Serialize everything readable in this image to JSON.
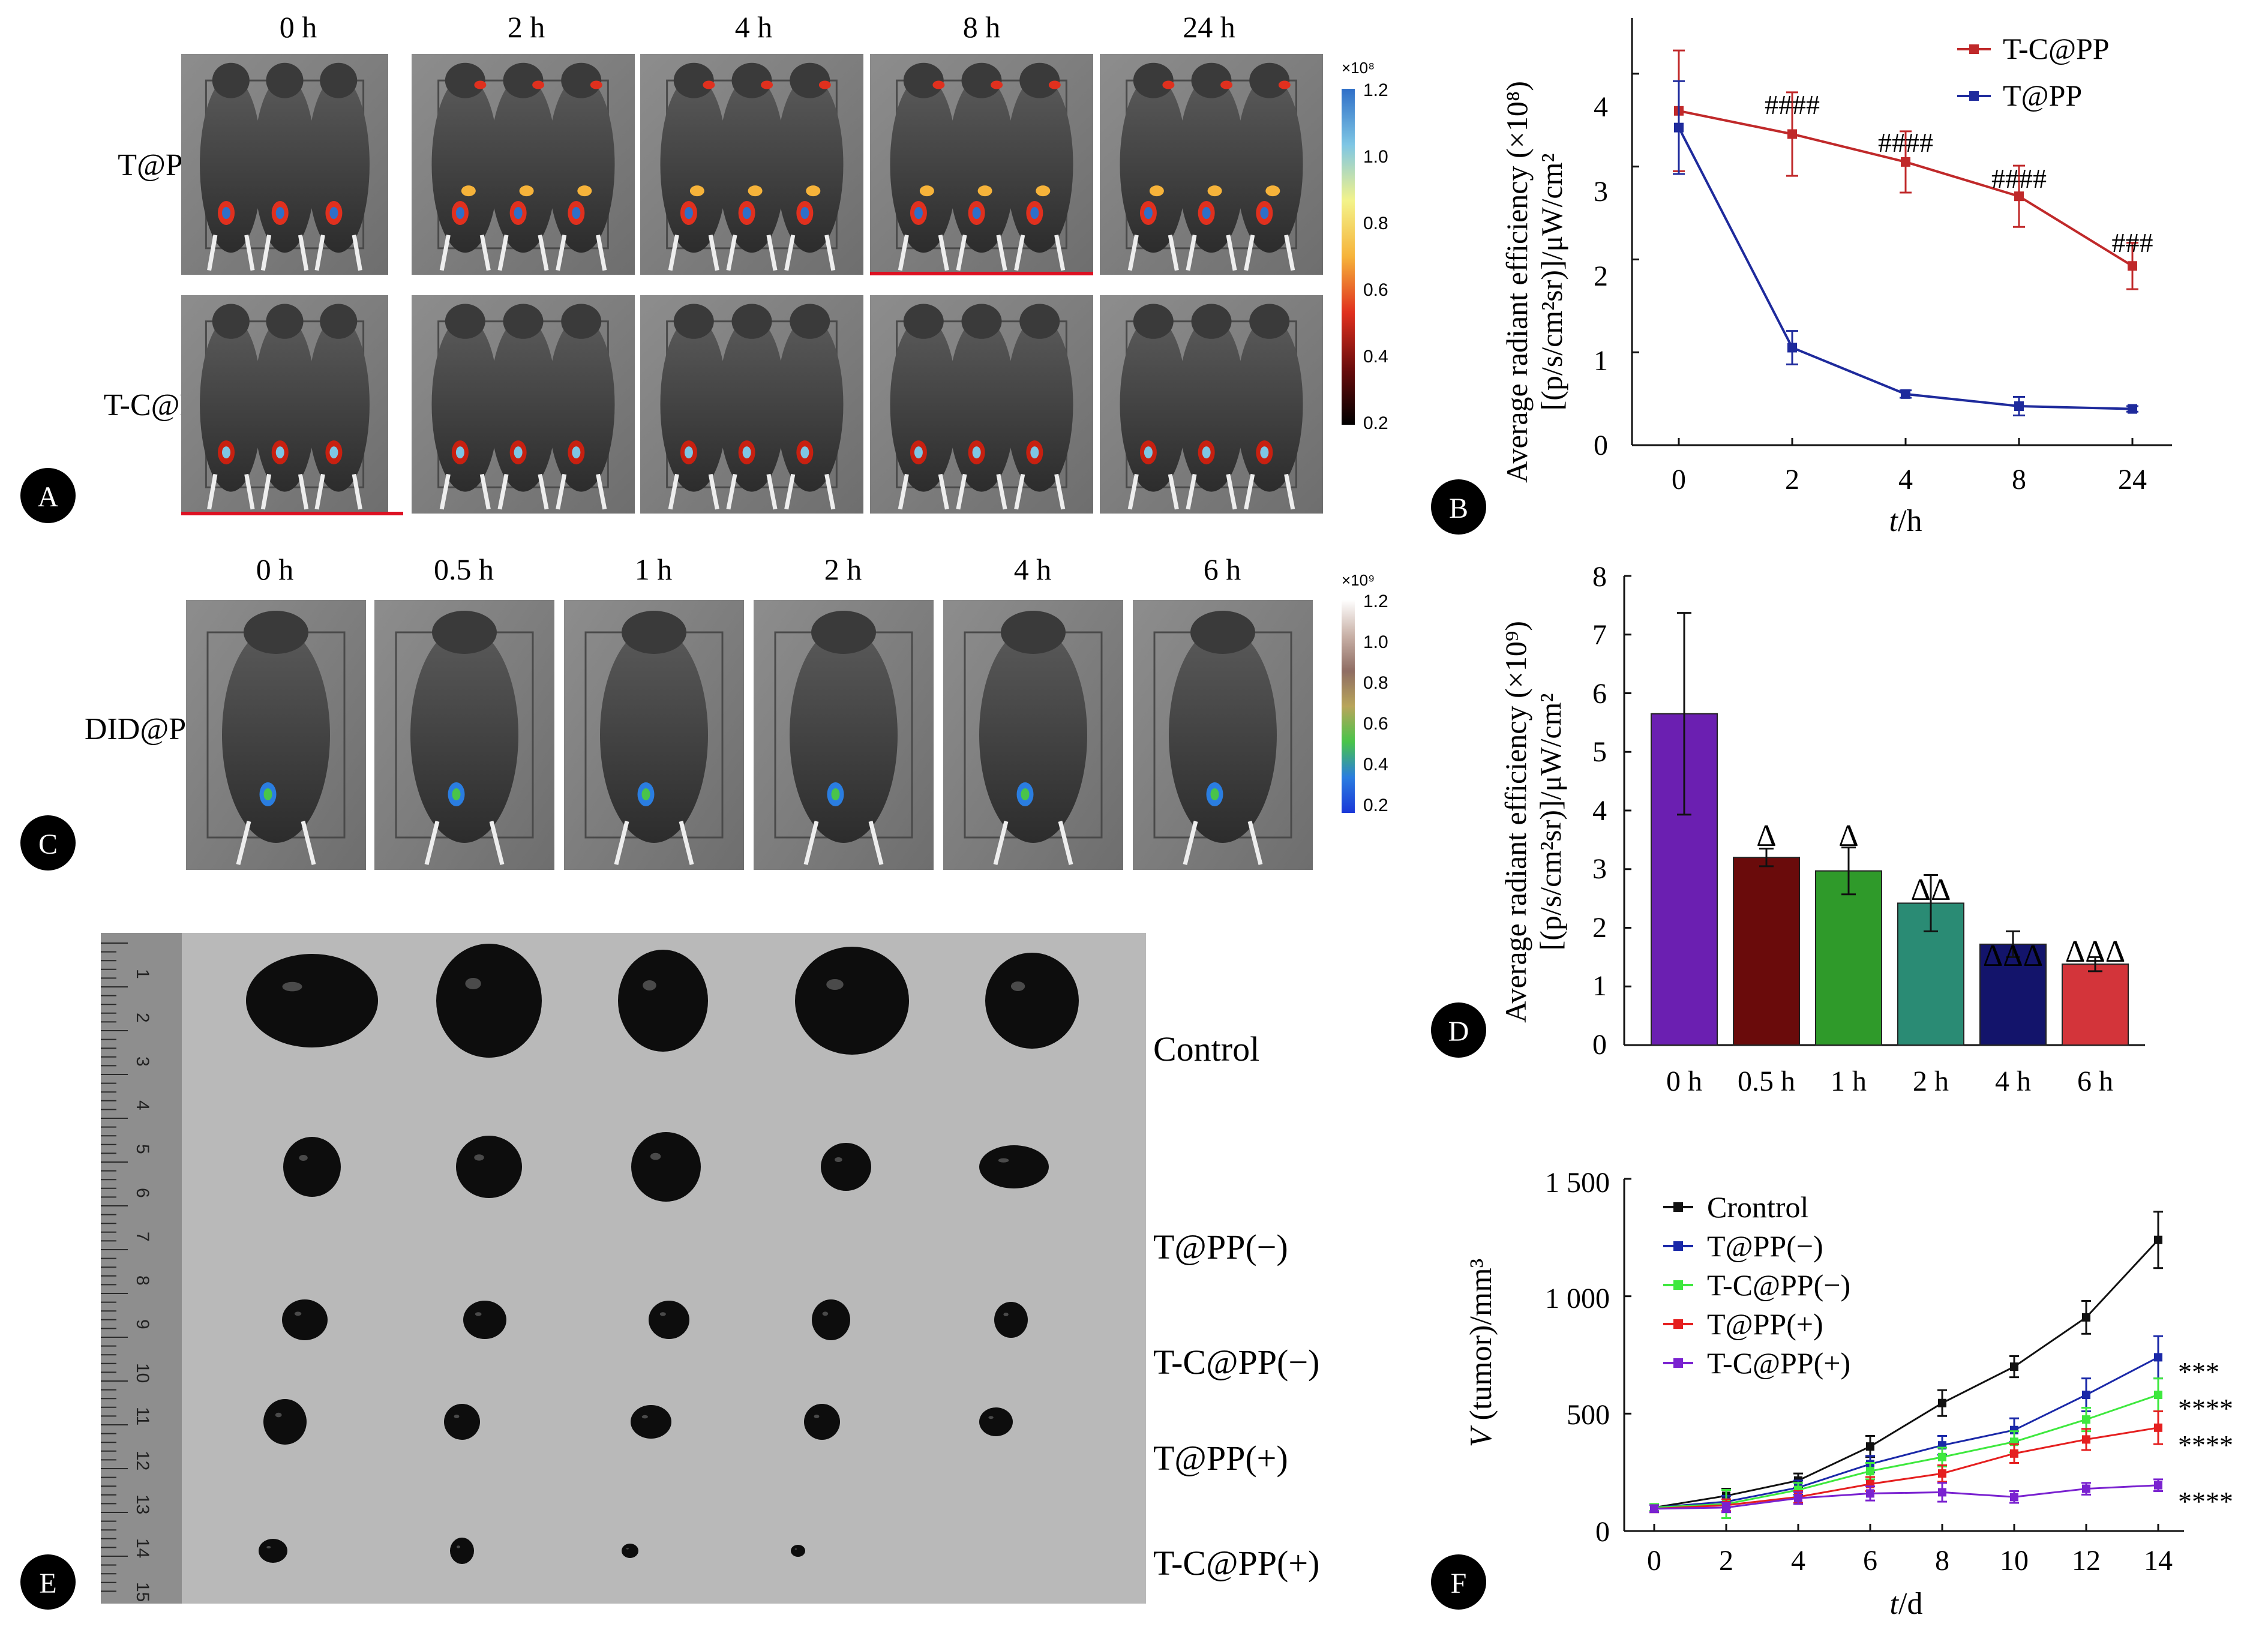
{
  "panel_a": {
    "letter": "A",
    "times": [
      "0 h",
      "2 h",
      "4 h",
      "8 h",
      "24 h"
    ],
    "rows": [
      "T@PP",
      "T-C@PP"
    ],
    "colorbar": {
      "exponent": "×10⁸",
      "ticks": [
        "1.2",
        "1.0",
        "0.8",
        "0.6",
        "0.4",
        "0.2"
      ],
      "colors": [
        "#2f6fc8",
        "#7ec6e4",
        "#f3f38a",
        "#f6b33a",
        "#e0301e",
        "#6b0c0c",
        "#000000"
      ]
    }
  },
  "panel_c": {
    "letter": "C",
    "times": [
      "0 h",
      "0.5 h",
      "1 h",
      "2 h",
      "4 h",
      "6 h"
    ],
    "row": "DID@PP",
    "colorbar": {
      "exponent": "×10⁹",
      "ticks": [
        "1.2",
        "1.0",
        "0.8",
        "0.6",
        "0.4",
        "0.2"
      ],
      "colors": [
        "#ffffff",
        "#c9b2a8",
        "#8f6d63",
        "#b8a55a",
        "#49c44a",
        "#2a7de0",
        "#1a37d8"
      ]
    }
  },
  "panel_e": {
    "letter": "E",
    "groups": [
      "Control",
      "T@PP(−)",
      "T-C@PP(−)",
      "T@PP(+)",
      "T-C@PP(+)"
    ],
    "ruler_marks": [
      "1",
      "2",
      "3",
      "4",
      "5",
      "6",
      "7",
      "8",
      "9",
      "10",
      "11",
      "12",
      "13",
      "14",
      "15"
    ]
  },
  "chart_data": [
    {
      "id": "B",
      "type": "line",
      "letter": "B",
      "xlabel_italic": "t",
      "xlabel_unit": "/h",
      "ylabel_line1": "Average radiant efficiency (×10⁸)",
      "ylabel_line2": "[(p/s/cm²sr)]/μW/cm²",
      "categories": [
        "0",
        "2",
        "4",
        "8",
        "24"
      ],
      "ylim": [
        0,
        4.6
      ],
      "yticks": [
        "0",
        "1",
        "2",
        "3",
        "4"
      ],
      "series": [
        {
          "name": "T-C@PP",
          "color": "#c0292a",
          "values": [
            3.6,
            3.35,
            3.05,
            2.68,
            1.93
          ],
          "errors": [
            0.65,
            0.45,
            0.33,
            0.33,
            0.25
          ]
        },
        {
          "name": "T@PP",
          "color": "#1e2a9c",
          "values": [
            3.42,
            1.05,
            0.55,
            0.42,
            0.39
          ],
          "errors": [
            0.5,
            0.18,
            0.04,
            0.1,
            0.03
          ]
        }
      ],
      "annotations": [
        "####",
        "####",
        "####",
        "###"
      ]
    },
    {
      "id": "D",
      "type": "bar",
      "letter": "D",
      "ylabel_line1": "Average radiant efficiency (×10⁹)",
      "ylabel_line2": "[(p/s/cm²sr)]/μW/cm²",
      "categories": [
        "0 h",
        "0.5 h",
        "1 h",
        "2 h",
        "4 h",
        "6 h"
      ],
      "values": [
        5.65,
        3.2,
        2.97,
        2.42,
        1.72,
        1.38
      ],
      "errors": [
        1.72,
        0.15,
        0.4,
        0.48,
        0.22,
        0.12
      ],
      "colors": [
        "#6b1fb1",
        "#6a0b0b",
        "#2f9a2a",
        "#2a8b74",
        "#13146b",
        "#d3343a"
      ],
      "labels": [
        "",
        "Δ",
        "Δ",
        "ΔΔ",
        "ΔΔΔ",
        "ΔΔΔ"
      ],
      "ylim": [
        0,
        8
      ],
      "yticks": [
        "0",
        "1",
        "2",
        "3",
        "4",
        "5",
        "6",
        "7",
        "8"
      ]
    },
    {
      "id": "F",
      "type": "line",
      "letter": "F",
      "xlabel_italic": "t",
      "xlabel_unit": "/d",
      "ylabel_italic": "V",
      "ylabel_rest": " (tumor)/mm³",
      "x": [
        0,
        2,
        4,
        6,
        8,
        10,
        12,
        14
      ],
      "xticks": [
        "0",
        "2",
        "4",
        "6",
        "8",
        "10",
        "12",
        "14"
      ],
      "ylim": [
        0,
        1500
      ],
      "yticks": [
        "0",
        "500",
        "1 000",
        "1 500"
      ],
      "series": [
        {
          "name": "Crontrol",
          "color": "#111111",
          "values": [
            100,
            150,
            215,
            360,
            545,
            700,
            910,
            1240
          ],
          "errors": [
            15,
            30,
            30,
            45,
            55,
            45,
            70,
            120
          ],
          "sig": ""
        },
        {
          "name": "T@PP(−)",
          "color": "#1a28a8",
          "values": [
            100,
            125,
            185,
            285,
            365,
            430,
            580,
            740
          ],
          "errors": [
            15,
            25,
            30,
            35,
            40,
            50,
            70,
            90
          ],
          "sig": "***"
        },
        {
          "name": "T-C@PP(−)",
          "color": "#3ee83e",
          "values": [
            100,
            115,
            175,
            255,
            315,
            380,
            475,
            580
          ],
          "errors": [
            15,
            60,
            30,
            35,
            40,
            45,
            50,
            70
          ],
          "sig": "****"
        },
        {
          "name": "T@PP(+)",
          "color": "#e51f1f",
          "values": [
            95,
            110,
            145,
            200,
            245,
            330,
            390,
            440
          ],
          "errors": [
            15,
            25,
            25,
            30,
            35,
            40,
            45,
            70
          ],
          "sig": "****"
        },
        {
          "name": "T-C@PP(+)",
          "color": "#7a22d0",
          "values": [
            95,
            100,
            140,
            160,
            165,
            145,
            180,
            195
          ],
          "errors": [
            15,
            20,
            25,
            30,
            40,
            25,
            25,
            25
          ],
          "sig": "****"
        }
      ]
    }
  ]
}
